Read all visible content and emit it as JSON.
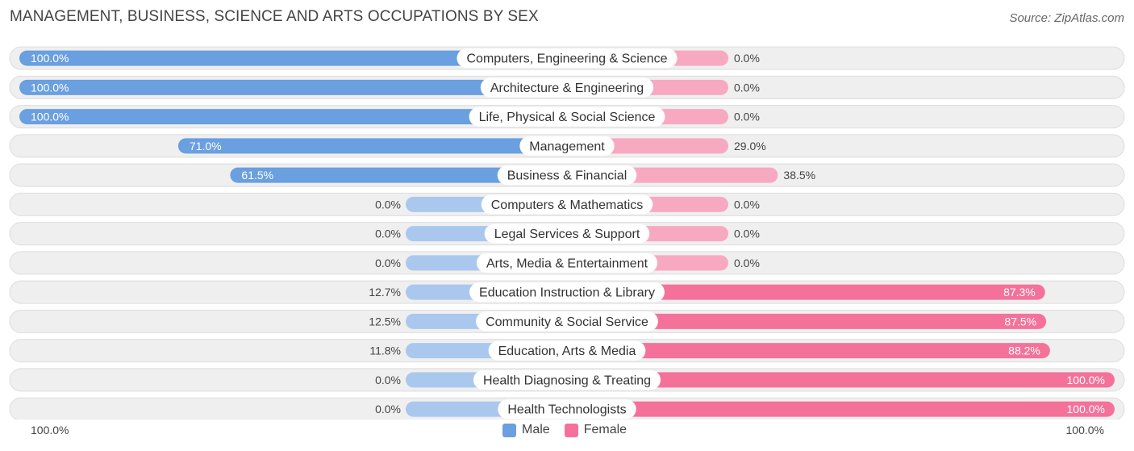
{
  "title": "MANAGEMENT, BUSINESS, SCIENCE AND ARTS OCCUPATIONS BY SEX",
  "source": "Source: ZipAtlas.com",
  "colors": {
    "male_strong": "#6a9fe0",
    "male_light": "#aac8ee",
    "female_strong": "#f4729a",
    "female_light": "#f8a9c2",
    "row_bg": "#efefef",
    "row_border": "#dddddd"
  },
  "axis": {
    "left_label": "100.0%",
    "right_label": "100.0%"
  },
  "chart_data": {
    "type": "bar",
    "categories": [
      "Computers, Engineering & Science",
      "Architecture & Engineering",
      "Life, Physical & Social Science",
      "Management",
      "Business & Financial",
      "Computers & Mathematics",
      "Legal Services & Support",
      "Arts, Media & Entertainment",
      "Education Instruction & Library",
      "Community & Social Service",
      "Education, Arts & Media",
      "Health Diagnosing & Treating",
      "Health Technologists"
    ],
    "series": [
      {
        "name": "Male",
        "values": [
          100.0,
          100.0,
          100.0,
          71.0,
          61.5,
          0.0,
          0.0,
          0.0,
          12.7,
          12.5,
          11.8,
          0.0,
          0.0
        ]
      },
      {
        "name": "Female",
        "values": [
          0.0,
          0.0,
          0.0,
          29.0,
          38.5,
          0.0,
          0.0,
          0.0,
          87.3,
          87.5,
          88.2,
          100.0,
          100.0
        ]
      }
    ],
    "value_labels": {
      "male": [
        "100.0%",
        "100.0%",
        "100.0%",
        "71.0%",
        "61.5%",
        "0.0%",
        "0.0%",
        "0.0%",
        "12.7%",
        "12.5%",
        "11.8%",
        "0.0%",
        "0.0%"
      ],
      "female": [
        "0.0%",
        "0.0%",
        "0.0%",
        "29.0%",
        "38.5%",
        "0.0%",
        "0.0%",
        "0.0%",
        "87.3%",
        "87.5%",
        "88.2%",
        "100.0%",
        "100.0%"
      ]
    },
    "xlim": [
      -100,
      100
    ],
    "legend_position": "bottom-center"
  }
}
